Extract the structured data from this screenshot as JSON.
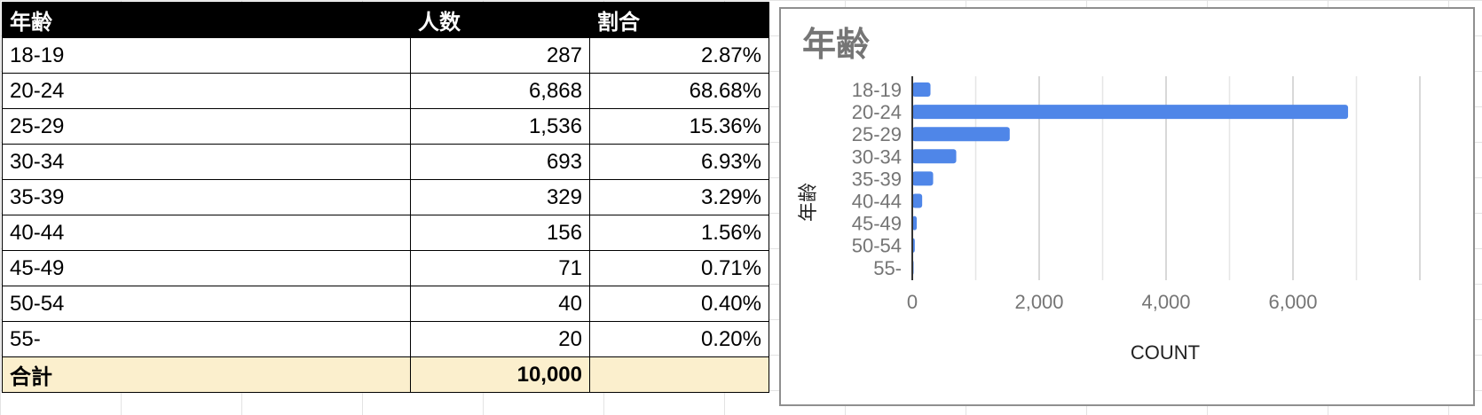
{
  "table": {
    "headers": [
      "年齢",
      "人数",
      "割合"
    ],
    "rows": [
      [
        "18-19",
        "287",
        "2.87%"
      ],
      [
        "20-24",
        "6,868",
        "68.68%"
      ],
      [
        "25-29",
        "1,536",
        "15.36%"
      ],
      [
        "30-34",
        "693",
        "6.93%"
      ],
      [
        "35-39",
        "329",
        "3.29%"
      ],
      [
        "40-44",
        "156",
        "1.56%"
      ],
      [
        "45-49",
        "71",
        "0.71%"
      ],
      [
        "50-54",
        "40",
        "0.40%"
      ],
      [
        "55-",
        "20",
        "0.20%"
      ]
    ],
    "total": {
      "label": "合計",
      "count": "10,000",
      "ratio": ""
    }
  },
  "colors": {
    "bar": "#4f86e8",
    "header_bg": "#000000",
    "total_bg": "#fbefcd",
    "grid": "#cccccc"
  },
  "chart_data": {
    "type": "bar",
    "orientation": "horizontal",
    "title": "年齢",
    "xlabel": "COUNT",
    "ylabel": "年齢",
    "categories": [
      "18-19",
      "20-24",
      "25-29",
      "30-34",
      "35-39",
      "40-44",
      "45-49",
      "50-54",
      "55-"
    ],
    "values": [
      287,
      6868,
      1536,
      693,
      329,
      156,
      71,
      40,
      20
    ],
    "xlim": [
      0,
      8000
    ],
    "xticks": [
      0,
      2000,
      4000,
      6000
    ],
    "xtick_labels": [
      "0",
      "2,000",
      "4,000",
      "6,000"
    ],
    "grid": true,
    "legend": "none"
  }
}
